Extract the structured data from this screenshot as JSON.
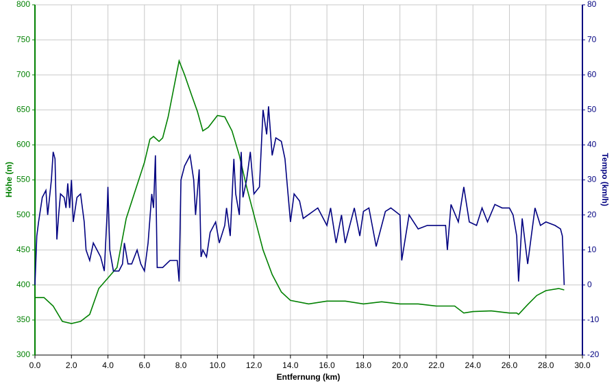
{
  "chart_data": {
    "type": "line",
    "xlabel": "Entfernung (km)",
    "ylabel": "Höhe (m)",
    "y2label": "Tempo (km/h)",
    "xlim": [
      0,
      30
    ],
    "ylim": [
      300,
      800
    ],
    "y2lim": [
      -20,
      80
    ],
    "xticks": [
      {
        "value": 0,
        "label": "0.0"
      },
      {
        "value": 2,
        "label": "2.0"
      },
      {
        "value": 4,
        "label": "4.0"
      },
      {
        "value": 6,
        "label": "6.0"
      },
      {
        "value": 8,
        "label": "8.0"
      },
      {
        "value": 10,
        "label": "10.0"
      },
      {
        "value": 12,
        "label": "12.0"
      },
      {
        "value": 14,
        "label": "14.0"
      },
      {
        "value": 16,
        "label": "16.0"
      },
      {
        "value": 18,
        "label": "18.0"
      },
      {
        "value": 20,
        "label": "20.0"
      },
      {
        "value": 22,
        "label": "22.0"
      },
      {
        "value": 24,
        "label": "24.0"
      },
      {
        "value": 26,
        "label": "26.0"
      },
      {
        "value": 28,
        "label": "28.0"
      },
      {
        "value": 30,
        "label": "30.0"
      }
    ],
    "yticks": [
      300,
      350,
      400,
      450,
      500,
      550,
      600,
      650,
      700,
      750,
      800
    ],
    "y2ticks": [
      -20,
      -10,
      0,
      10,
      20,
      30,
      40,
      50,
      60,
      70,
      80
    ],
    "grid": true,
    "ycolor": "#008000",
    "y2color": "#000080",
    "series": [
      {
        "color": "#008000",
        "axis": "y",
        "x": [
          0,
          0.5,
          1,
          1.5,
          2,
          2.5,
          3,
          3.5,
          4,
          4.5,
          5,
          5.5,
          6,
          6.3,
          6.5,
          6.8,
          7,
          7.3,
          7.6,
          7.9,
          8.2,
          8.6,
          8.9,
          9.2,
          9.5,
          10,
          10.4,
          10.8,
          11.2,
          11.6,
          12,
          12.5,
          13,
          13.5,
          14,
          15,
          16,
          17,
          18,
          19,
          20,
          21,
          22,
          23,
          23.5,
          24,
          25,
          26,
          26.4,
          26.5,
          27,
          27.5,
          28,
          28.7,
          29
        ],
        "values": [
          382,
          382,
          370,
          348,
          345,
          348,
          358,
          395,
          410,
          425,
          495,
          535,
          575,
          608,
          612,
          605,
          610,
          640,
          680,
          720,
          700,
          670,
          648,
          620,
          625,
          642,
          640,
          620,
          585,
          540,
          500,
          450,
          415,
          390,
          378,
          373,
          377,
          377,
          373,
          376,
          373,
          373,
          370,
          370,
          360,
          362,
          363,
          360,
          360,
          358,
          372,
          385,
          392,
          395,
          393
        ]
      },
      {
        "color": "#000080",
        "axis": "y2",
        "x": [
          0,
          0.1,
          0.2,
          0.4,
          0.6,
          0.7,
          0.9,
          1,
          1.1,
          1.2,
          1.3,
          1.4,
          1.6,
          1.7,
          1.8,
          1.9,
          2,
          2.1,
          2.3,
          2.5,
          2.7,
          2.8,
          3,
          3.2,
          3.4,
          3.6,
          3.8,
          3.95,
          4,
          4.1,
          4.3,
          4.6,
          4.8,
          4.9,
          5.1,
          5.3,
          5.6,
          5.8,
          6,
          6.2,
          6.4,
          6.5,
          6.6,
          6.7,
          7,
          7.4,
          7.8,
          7.9,
          8,
          8.2,
          8.5,
          8.7,
          8.8,
          9,
          9.1,
          9.2,
          9.4,
          9.6,
          9.9,
          10.1,
          10.4,
          10.5,
          10.7,
          10.9,
          11,
          11.2,
          11.3,
          11.4,
          11.6,
          11.8,
          12,
          12.3,
          12.5,
          12.7,
          12.8,
          13,
          13.2,
          13.5,
          13.7,
          14,
          14.2,
          14.5,
          14.7,
          15.5,
          16,
          16.2,
          16.5,
          16.8,
          17,
          17.5,
          17.8,
          18,
          18.3,
          18.7,
          19.2,
          19.5,
          20,
          20.1,
          20.5,
          21,
          21.5,
          22,
          22.5,
          22.6,
          22.8,
          23.2,
          23.5,
          23.8,
          24.2,
          24.5,
          24.8,
          25.2,
          25.6,
          26,
          26.2,
          26.4,
          26.5,
          26.7,
          27,
          27.2,
          27.4,
          27.7,
          28,
          28.5,
          28.8,
          28.9,
          29
        ],
        "values": [
          0,
          14,
          18,
          25,
          27,
          20,
          30,
          38,
          36,
          13,
          20,
          26,
          25,
          22,
          29,
          22,
          30,
          18,
          25,
          26,
          18,
          10,
          7,
          12,
          10,
          8,
          4,
          20,
          28,
          10,
          4,
          4,
          6,
          12,
          6,
          6,
          10,
          6,
          4,
          12,
          26,
          22,
          37,
          5,
          5,
          7,
          7,
          1,
          30,
          34,
          37,
          30,
          20,
          33,
          8,
          10,
          8,
          15,
          18,
          12,
          17,
          22,
          14,
          36,
          26,
          20,
          38,
          25,
          30,
          38,
          26,
          28,
          50,
          43,
          51,
          37,
          42,
          41,
          36,
          18,
          26,
          24,
          19,
          22,
          17,
          22,
          12,
          20,
          12,
          22,
          14,
          21,
          22,
          11,
          21,
          22,
          20,
          7,
          20,
          16,
          17,
          17,
          17,
          10,
          23,
          18,
          28,
          18,
          17,
          22,
          18,
          23,
          22,
          22,
          20,
          14,
          1,
          19,
          6,
          14,
          22,
          17,
          18,
          17,
          16,
          14,
          0
        ]
      }
    ]
  }
}
